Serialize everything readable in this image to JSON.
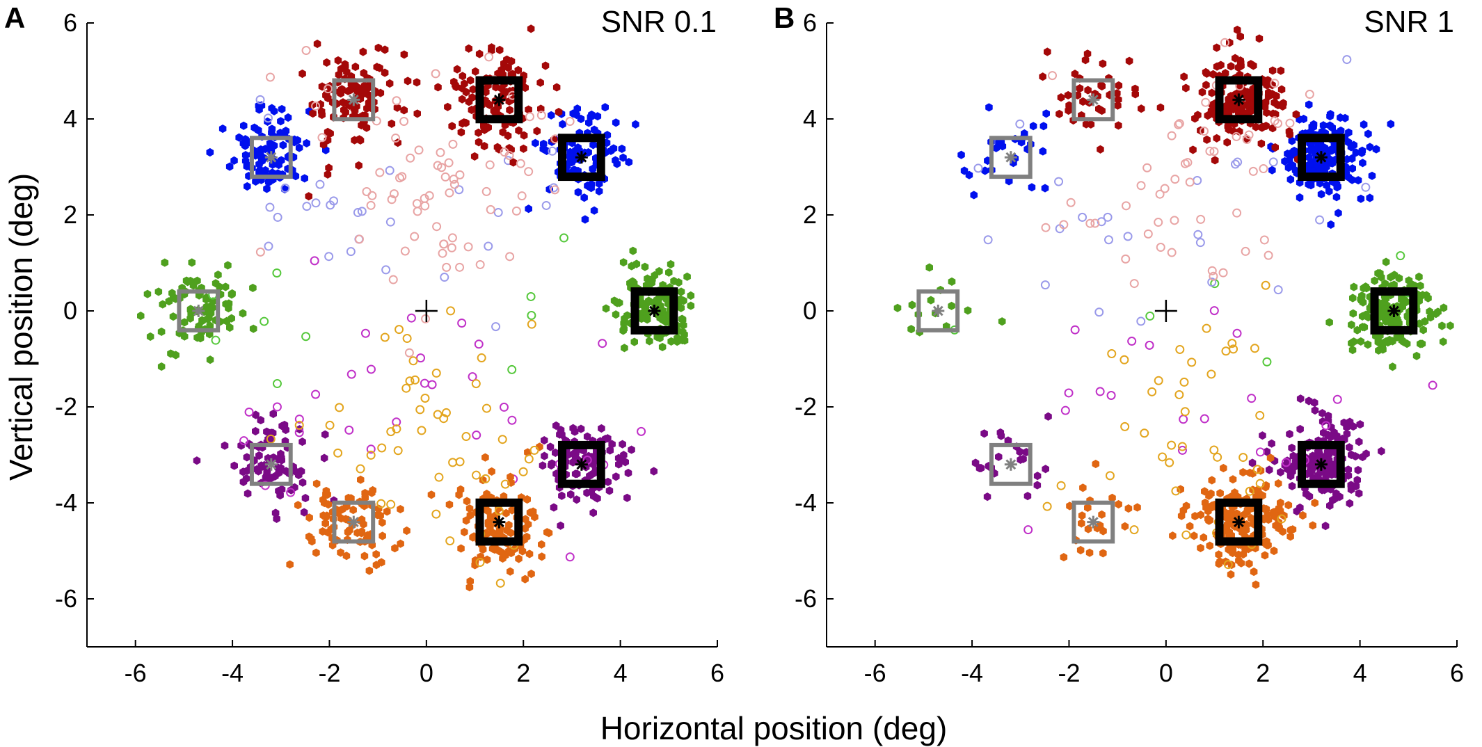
{
  "figure": {
    "xlabel": "Horizontal position (deg)",
    "ylabel": "Vertical position (deg)"
  },
  "colors": {
    "green": "#4fa01e",
    "green_open": "#56c83c",
    "blue": "#0010ee",
    "blue_open": "#9a9aea",
    "red": "#a40808",
    "red_open": "#e8a4a4",
    "purple": "#7a0a86",
    "purple_open": "#c030c8",
    "orange": "#e06612",
    "orange_open": "#e3a51e",
    "box_gray": "#808080",
    "box_black": "#000000",
    "fixation": "#000000"
  },
  "chart_data": [
    {
      "type": "scatter",
      "panel": "A",
      "title": "SNR 0.1",
      "xlim": [
        -7,
        6
      ],
      "ylim": [
        -7,
        6
      ],
      "xticks": [
        -6,
        -4,
        -2,
        0,
        2,
        4,
        6
      ],
      "yticks": [
        -6,
        -4,
        -2,
        0,
        2,
        4,
        6
      ],
      "fixation": [
        0,
        0
      ],
      "targets": [
        {
          "name": "green-left",
          "x": -4.7,
          "y": 0,
          "kind": "distractor",
          "color": "green",
          "spread": 0.45,
          "n": 85,
          "open": 6
        },
        {
          "name": "green-right",
          "x": 4.7,
          "y": 0,
          "kind": "target",
          "color": "green",
          "spread": 0.45,
          "n": 120,
          "open": 4
        },
        {
          "name": "blue-left",
          "x": -3.2,
          "y": 3.2,
          "kind": "distractor",
          "color": "blue",
          "spread": 0.45,
          "n": 95,
          "open": 20
        },
        {
          "name": "blue-right",
          "x": 3.2,
          "y": 3.2,
          "kind": "target",
          "color": "blue",
          "spread": 0.45,
          "n": 95,
          "open": 8
        },
        {
          "name": "red-left",
          "x": -1.5,
          "y": 4.4,
          "kind": "distractor",
          "color": "red",
          "spread": 0.5,
          "n": 110,
          "open": 25
        },
        {
          "name": "red-right",
          "x": 1.5,
          "y": 4.4,
          "kind": "target",
          "color": "red",
          "spread": 0.5,
          "n": 120,
          "open": 45
        },
        {
          "name": "purple-left",
          "x": -3.2,
          "y": -3.2,
          "kind": "distractor",
          "color": "purple",
          "spread": 0.45,
          "n": 85,
          "open": 18
        },
        {
          "name": "purple-right",
          "x": 3.2,
          "y": -3.2,
          "kind": "target",
          "color": "purple",
          "spread": 0.45,
          "n": 95,
          "open": 14
        },
        {
          "name": "orange-left",
          "x": -1.5,
          "y": -4.4,
          "kind": "distractor",
          "color": "orange",
          "spread": 0.5,
          "n": 80,
          "open": 20
        },
        {
          "name": "orange-right",
          "x": 1.5,
          "y": -4.4,
          "kind": "target",
          "color": "orange",
          "spread": 0.5,
          "n": 110,
          "open": 30
        }
      ]
    },
    {
      "type": "scatter",
      "panel": "B",
      "title": "SNR 1",
      "xlim": [
        -7,
        6
      ],
      "ylim": [
        -7,
        6
      ],
      "xticks": [
        -6,
        -4,
        -2,
        0,
        2,
        4,
        6
      ],
      "yticks": [
        -6,
        -4,
        -2,
        0,
        2,
        4,
        6
      ],
      "fixation": [
        0,
        0
      ],
      "targets": [
        {
          "name": "green-left",
          "x": -4.7,
          "y": 0,
          "kind": "distractor",
          "color": "green",
          "spread": 0.45,
          "n": 14,
          "open": 2
        },
        {
          "name": "green-right",
          "x": 4.7,
          "y": 0,
          "kind": "target",
          "color": "green",
          "spread": 0.45,
          "n": 175,
          "open": 4
        },
        {
          "name": "blue-left",
          "x": -3.2,
          "y": 3.2,
          "kind": "distractor",
          "color": "blue",
          "spread": 0.45,
          "n": 28,
          "open": 14
        },
        {
          "name": "blue-right",
          "x": 3.2,
          "y": 3.2,
          "kind": "target",
          "color": "blue",
          "spread": 0.45,
          "n": 175,
          "open": 10
        },
        {
          "name": "red-left",
          "x": -1.5,
          "y": 4.4,
          "kind": "distractor",
          "color": "red",
          "spread": 0.5,
          "n": 40,
          "open": 15
        },
        {
          "name": "red-right",
          "x": 1.5,
          "y": 4.4,
          "kind": "target",
          "color": "red",
          "spread": 0.5,
          "n": 150,
          "open": 35
        },
        {
          "name": "purple-left",
          "x": -3.2,
          "y": -3.2,
          "kind": "distractor",
          "color": "purple",
          "spread": 0.45,
          "n": 22,
          "open": 8
        },
        {
          "name": "purple-right",
          "x": 3.2,
          "y": -3.2,
          "kind": "target",
          "color": "purple",
          "spread": 0.45,
          "n": 160,
          "open": 12
        },
        {
          "name": "orange-left",
          "x": -1.5,
          "y": -4.4,
          "kind": "distractor",
          "color": "orange",
          "spread": 0.5,
          "n": 22,
          "open": 8
        },
        {
          "name": "orange-right",
          "x": 1.5,
          "y": -4.4,
          "kind": "target",
          "color": "orange",
          "spread": 0.5,
          "n": 175,
          "open": 32
        }
      ]
    }
  ]
}
